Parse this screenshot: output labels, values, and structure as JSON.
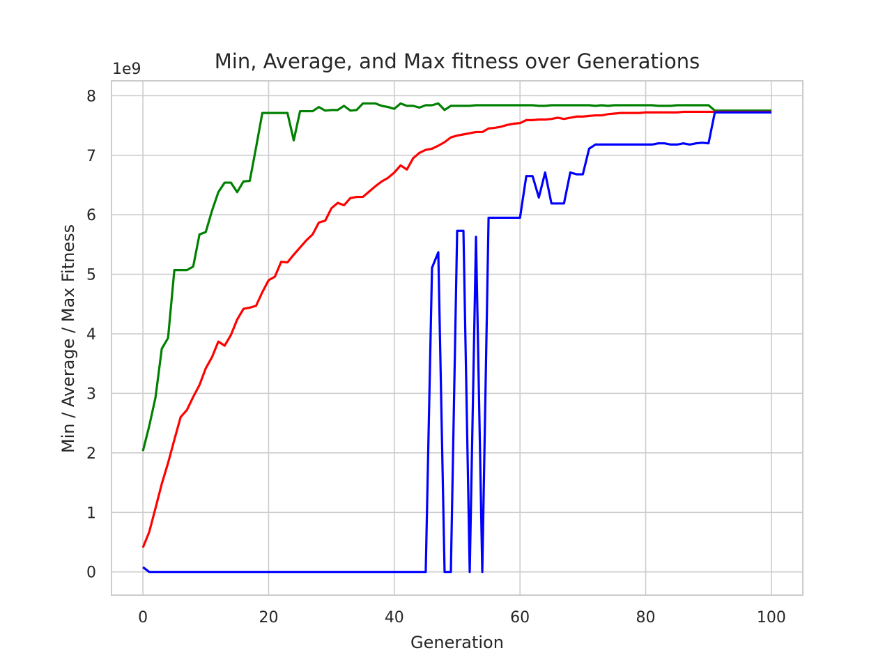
{
  "chart_data": {
    "type": "line",
    "title": "Min, Average, and Max fitness over Generations",
    "xlabel": "Generation",
    "ylabel": "Min / Average / Max Fitness",
    "y_offset_label": "1e9",
    "xlim": [
      -5,
      105
    ],
    "ylim": [
      -0.39,
      8.25
    ],
    "xticks": [
      0,
      20,
      40,
      60,
      80,
      100
    ],
    "xtick_labels": [
      "0",
      "20",
      "40",
      "60",
      "80",
      "100"
    ],
    "yticks": [
      0,
      1,
      2,
      3,
      4,
      5,
      6,
      7,
      8
    ],
    "ytick_labels": [
      "0",
      "1",
      "2",
      "3",
      "4",
      "5",
      "6",
      "7",
      "8"
    ],
    "grid": true,
    "y_multiplier": 1000000000,
    "series": [
      {
        "color": "#008000",
        "values": [
          2.03,
          2.45,
          2.93,
          3.75,
          3.93,
          5.07,
          5.07,
          5.07,
          5.13,
          5.67,
          5.71,
          6.07,
          6.38,
          6.54,
          6.54,
          6.38,
          6.56,
          6.57,
          7.13,
          7.71,
          7.71,
          7.71,
          7.71,
          7.71,
          7.25,
          7.74,
          7.74,
          7.74,
          7.81,
          7.75,
          7.76,
          7.76,
          7.83,
          7.75,
          7.76,
          7.87,
          7.87,
          7.87,
          7.83,
          7.81,
          7.78,
          7.87,
          7.83,
          7.83,
          7.8,
          7.84,
          7.84,
          7.87,
          7.76,
          7.83,
          7.83,
          7.83,
          7.83,
          7.84,
          7.84,
          7.84,
          7.84,
          7.84,
          7.84,
          7.84,
          7.84,
          7.84,
          7.84,
          7.83,
          7.83,
          7.84,
          7.84,
          7.84,
          7.84,
          7.84,
          7.84,
          7.84,
          7.83,
          7.84,
          7.83,
          7.84,
          7.84,
          7.84,
          7.84,
          7.84,
          7.84,
          7.84,
          7.83,
          7.83,
          7.83,
          7.84,
          7.84,
          7.84,
          7.84,
          7.84,
          7.84,
          7.75,
          7.75,
          7.75,
          7.75,
          7.75,
          7.75,
          7.75,
          7.75,
          7.75,
          7.75
        ]
      },
      {
        "color": "#ff0000",
        "values": [
          0.41,
          0.67,
          1.07,
          1.48,
          1.83,
          2.22,
          2.6,
          2.72,
          2.94,
          3.14,
          3.42,
          3.61,
          3.87,
          3.8,
          3.98,
          4.24,
          4.42,
          4.44,
          4.47,
          4.7,
          4.9,
          4.96,
          5.21,
          5.2,
          5.33,
          5.45,
          5.57,
          5.67,
          5.87,
          5.9,
          6.11,
          6.2,
          6.16,
          6.28,
          6.3,
          6.3,
          6.39,
          6.48,
          6.56,
          6.62,
          6.71,
          6.83,
          6.76,
          6.95,
          7.04,
          7.09,
          7.11,
          7.16,
          7.22,
          7.3,
          7.33,
          7.35,
          7.37,
          7.39,
          7.39,
          7.45,
          7.46,
          7.48,
          7.51,
          7.53,
          7.54,
          7.59,
          7.59,
          7.6,
          7.6,
          7.61,
          7.63,
          7.61,
          7.63,
          7.65,
          7.65,
          7.66,
          7.67,
          7.67,
          7.69,
          7.7,
          7.71,
          7.71,
          7.71,
          7.71,
          7.72,
          7.72,
          7.72,
          7.72,
          7.72,
          7.72,
          7.73,
          7.73,
          7.73,
          7.73,
          7.73,
          7.73,
          7.73,
          7.73,
          7.73,
          7.73,
          7.73,
          7.73,
          7.73,
          7.73,
          7.73
        ]
      },
      {
        "color": "#0000ff",
        "values": [
          0.08,
          0.0,
          0.0,
          0.0,
          0.0,
          0.0,
          0.0,
          0.0,
          0.0,
          0.0,
          0.0,
          0.0,
          0.0,
          0.0,
          0.0,
          0.0,
          0.0,
          0.0,
          0.0,
          0.0,
          0.0,
          0.0,
          0.0,
          0.0,
          0.0,
          0.0,
          0.0,
          0.0,
          0.0,
          0.0,
          0.0,
          0.0,
          0.0,
          0.0,
          0.0,
          0.0,
          0.0,
          0.0,
          0.0,
          0.0,
          0.0,
          0.0,
          0.0,
          0.0,
          0.0,
          0.0,
          5.11,
          5.37,
          0.0,
          0.0,
          5.73,
          5.73,
          0.0,
          5.63,
          0.0,
          5.95,
          5.95,
          5.95,
          5.95,
          5.95,
          5.95,
          6.65,
          6.65,
          6.29,
          6.71,
          6.19,
          6.19,
          6.19,
          6.71,
          6.68,
          6.68,
          7.11,
          7.18,
          7.18,
          7.18,
          7.18,
          7.18,
          7.18,
          7.18,
          7.18,
          7.18,
          7.18,
          7.2,
          7.2,
          7.18,
          7.18,
          7.2,
          7.18,
          7.2,
          7.21,
          7.2,
          7.72,
          7.72,
          7.72,
          7.72,
          7.72,
          7.72,
          7.72,
          7.72,
          7.72,
          7.72
        ]
      }
    ]
  }
}
